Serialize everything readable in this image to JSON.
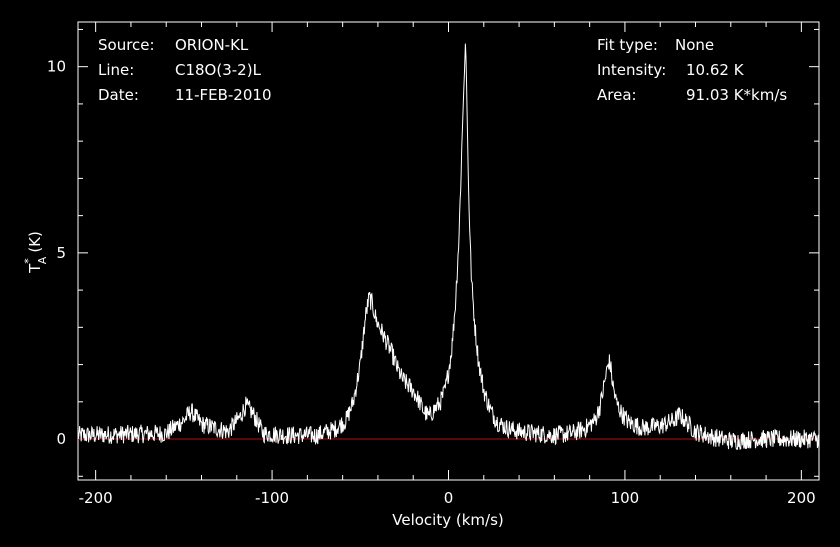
{
  "info_left": [
    {
      "key": "Source:",
      "value": "ORION-KL"
    },
    {
      "key": "Line:",
      "value": "C18O(3-2)L"
    },
    {
      "key": "Date:",
      "value": "11-FEB-2010"
    }
  ],
  "info_right": [
    {
      "key": "Fit type:",
      "value": "None"
    },
    {
      "key": "Intensity:",
      "value": "10.62 K"
    },
    {
      "key": "Area:",
      "value": "91.03 K*km/s"
    }
  ],
  "colors": {
    "background": "#000000",
    "axes": "#ffffff",
    "spectrum": "#ffffff",
    "baseline": "#b01010"
  },
  "chart_data": {
    "type": "line",
    "xlabel": "Velocity (km/s)",
    "ylabel": "T*A (K)",
    "ylabel_main": "T",
    "ylabel_sup": "*",
    "ylabel_sub": "A",
    "ylabel_unit": "(K)",
    "xlim": [
      -210,
      210
    ],
    "ylim": [
      -1.1,
      11.2
    ],
    "x_ticks": [
      -200,
      -100,
      0,
      100,
      200
    ],
    "x_tick_labels": [
      "-200",
      "-100",
      "0",
      "100",
      "200"
    ],
    "y_ticks": [
      0,
      5,
      10
    ],
    "y_tick_labels": [
      "0",
      "5",
      "10"
    ],
    "grid": false,
    "baseline_y": 0,
    "series": [
      {
        "x": [
          -210,
          -160,
          -150,
          -146,
          -140,
          -125,
          -118,
          -115,
          -111,
          -105,
          -90,
          -75,
          -65,
          -58,
          -54,
          -50,
          -47,
          -45,
          -43,
          -41,
          -38,
          -35,
          -32,
          -29,
          -26,
          -23,
          -20,
          -17,
          -14,
          -11,
          -8,
          -5,
          -2,
          0,
          2,
          4,
          6,
          7,
          8,
          9,
          9.6,
          10,
          10.5,
          11,
          12,
          13,
          15,
          17,
          20,
          24,
          28,
          33,
          40,
          50,
          60,
          70,
          78,
          83,
          86,
          88,
          90,
          91,
          92,
          93,
          95,
          98,
          102,
          110,
          120,
          128,
          131,
          134,
          140,
          150,
          160,
          175,
          190,
          210
        ],
        "y": [
          0.1,
          0.15,
          0.5,
          0.75,
          0.4,
          0.2,
          0.6,
          0.9,
          0.7,
          0.15,
          0.1,
          0.1,
          0.25,
          0.5,
          1.0,
          2.0,
          3.3,
          3.8,
          3.6,
          3.2,
          2.9,
          2.6,
          2.3,
          1.9,
          1.6,
          1.45,
          1.3,
          1.05,
          0.75,
          0.6,
          0.8,
          0.95,
          1.3,
          1.8,
          2.5,
          3.7,
          5.5,
          7.0,
          8.5,
          9.8,
          10.62,
          10.1,
          8.9,
          7.5,
          5.7,
          4.3,
          3.0,
          2.1,
          1.3,
          0.75,
          0.45,
          0.3,
          0.2,
          0.15,
          0.1,
          0.15,
          0.3,
          0.5,
          0.9,
          1.4,
          1.9,
          2.1,
          1.9,
          1.5,
          1.0,
          0.7,
          0.45,
          0.3,
          0.35,
          0.5,
          0.65,
          0.5,
          0.2,
          0.05,
          -0.05,
          0.0,
          0.0,
          0.0
        ]
      }
    ]
  }
}
